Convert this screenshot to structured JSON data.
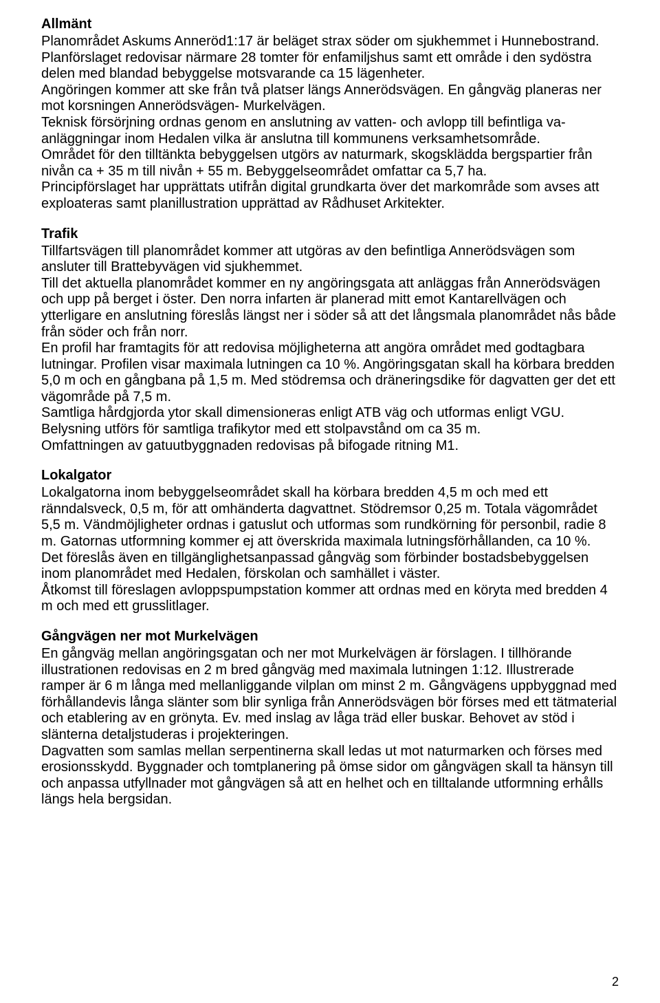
{
  "sections": [
    {
      "heading": "Allmänt",
      "body": "Planområdet Askums Anneröd1:17 är beläget strax söder om sjukhemmet i Hunnebostrand. Planförslaget redovisar närmare 28 tomter för enfamiljshus samt ett område i den sydöstra delen med blandad bebyggelse motsvarande ca 15 lägenheter.\nAngöringen kommer att ske från två platser längs Annerödsvägen. En gångväg planeras ner mot korsningen Annerödsvägen- Murkelvägen.\nTeknisk försörjning ordnas genom en anslutning av vatten- och avlopp till befintliga va-anläggningar inom Hedalen vilka är anslutna till kommunens verksamhetsområde.\nOmrådet för den tilltänkta bebyggelsen utgörs av naturmark, skogsklädda bergspartier från nivån ca + 35 m till nivån + 55 m. Bebyggelseområdet omfattar ca 5,7 ha.\nPrincipförslaget har upprättats utifrån digital grundkarta över det markområde som avses att exploateras samt planillustration upprättad av Rådhuset Arkitekter."
    },
    {
      "heading": "Trafik",
      "body": "Tillfartsvägen till planområdet kommer att utgöras av den befintliga Annerödsvägen som ansluter till Brattebyvägen vid sjukhemmet.\nTill det aktuella planområdet kommer en ny angöringsgata att anläggas från Annerödsvägen och upp på berget i öster. Den norra infarten är planerad mitt emot Kantarellvägen och ytterligare en anslutning föreslås längst ner i söder så att det långsmala planområdet nås både från söder och från norr.\nEn profil har framtagits för att redovisa möjligheterna att angöra området med godtagbara lutningar. Profilen visar maximala lutningen ca 10 %. Angöringsgatan skall ha körbara bredden 5,0 m och en gångbana på 1,5 m. Med stödremsa och dräneringsdike för dagvatten ger det ett vägområde på 7,5 m.\nSamtliga hårdgjorda ytor skall dimensioneras enligt ATB väg och utformas enligt VGU.\nBelysning utförs för samtliga trafikytor med ett stolpavstånd om ca 35 m.\nOmfattningen av gatuutbyggnaden redovisas på bifogade ritning M1."
    },
    {
      "heading": "Lokalgator",
      "body": "Lokalgatorna inom bebyggelseområdet skall ha körbara bredden 4,5 m och med ett ränndalsveck, 0,5 m, för att omhänderta dagvattnet. Stödremsor 0,25 m. Totala vägområdet 5,5 m. Vändmöjligheter ordnas i gatuslut och utformas som rundkörning för personbil, radie 8 m. Gatornas utformning kommer ej att överskrida maximala lutningsförhållanden, ca 10 %.\nDet föreslås även en tillgänglighetsanpassad gångväg som förbinder bostadsbebyggelsen inom planområdet med Hedalen, förskolan och samhället i väster.\nÅtkomst till föreslagen avloppspumpstation kommer att ordnas med en köryta med bredden 4 m och med ett grusslitlager."
    },
    {
      "heading": "Gångvägen ner mot Murkelvägen",
      "body": "En gångväg mellan angöringsgatan och ner mot Murkelvägen är förslagen. I tillhörande illustrationen redovisas en 2 m bred gångväg med maximala lutningen 1:12. Illustrerade ramper är 6 m långa med mellanliggande vilplan om minst 2 m. Gångvägens uppbyggnad med förhållandevis långa slänter som blir synliga från Annerödsvägen bör förses med ett tätmaterial och etablering av en grönyta. Ev. med inslag av låga träd eller buskar. Behovet av stöd i slänterna detaljstuderas i projekteringen.\nDagvatten som samlas mellan serpentinerna skall ledas ut mot naturmarken och förses med erosionsskydd. Byggnader och tomtplanering på ömse sidor om gångvägen skall ta hänsyn till och anpassa utfyllnader mot gångvägen så att en helhet och en tilltalande utformning erhålls längs hela bergsidan."
    }
  ],
  "page_number": "2"
}
